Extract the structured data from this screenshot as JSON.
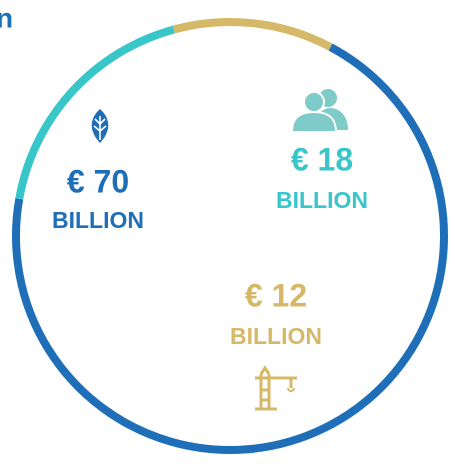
{
  "chart_data": {
    "type": "donut",
    "title": "n",
    "values": [
      70,
      18,
      12
    ],
    "value_labels": [
      "€ 70",
      "€ 18",
      "€ 12"
    ],
    "unit": "BILLION",
    "colors": [
      "#1f6fb8",
      "#38c6c9",
      "#d5b968"
    ]
  }
}
